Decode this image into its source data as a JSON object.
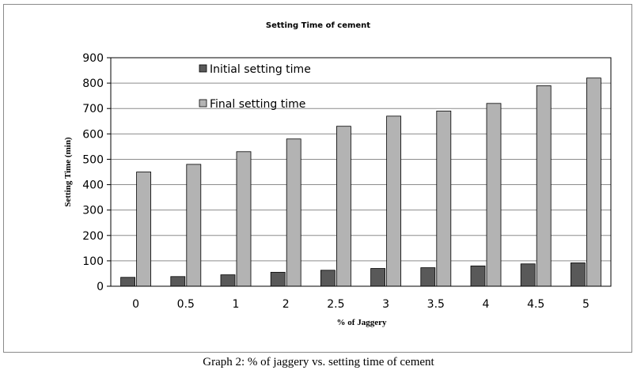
{
  "chart_data": {
    "type": "bar",
    "title": "Setting Time of cement",
    "xlabel": "% of Jaggery",
    "ylabel": "Setting Time (min)",
    "ylim": [
      0,
      900
    ],
    "yticks": [
      0,
      100,
      200,
      300,
      400,
      500,
      600,
      700,
      800,
      900
    ],
    "grid": true,
    "legend_placement": "top-left",
    "categories": [
      "0",
      "0.5",
      "1",
      "2",
      "2.5",
      "3",
      "3.5",
      "4",
      "4.5",
      "5"
    ],
    "series": [
      {
        "name": "Initial setting time",
        "color": "#595959",
        "values": [
          35,
          38,
          45,
          55,
          63,
          70,
          73,
          80,
          88,
          92
        ]
      },
      {
        "name": "Final setting time",
        "color": "#b3b3b3",
        "values": [
          450,
          480,
          530,
          580,
          630,
          670,
          690,
          720,
          790,
          820
        ]
      }
    ]
  },
  "caption": "Graph 2: % of jaggery vs. setting time of cement"
}
